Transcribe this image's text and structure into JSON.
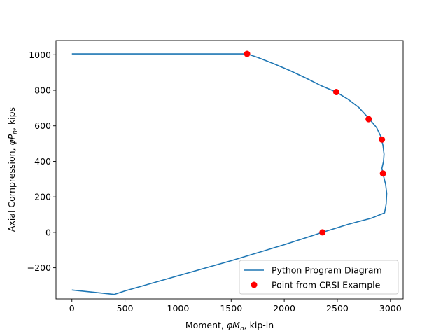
{
  "chart_data": {
    "type": "line",
    "title": "",
    "xlabel": {
      "prefix": "Moment, ",
      "symbol": "φM",
      "sub": "n",
      "suffix": ", kip-in"
    },
    "ylabel": {
      "prefix": "Axial Compression, ",
      "symbol": "φP",
      "sub": "n",
      "suffix": ", kips"
    },
    "xlim": [
      -150,
      3120
    ],
    "ylim": [
      -375,
      1080
    ],
    "xticks": [
      0,
      500,
      1000,
      1500,
      2000,
      2500,
      3000
    ],
    "yticks": [
      -200,
      0,
      200,
      400,
      600,
      800,
      1000
    ],
    "xtick_labels": [
      "0",
      "500",
      "1000",
      "1500",
      "2000",
      "2500",
      "3000"
    ],
    "ytick_labels": [
      "−200",
      "0",
      "200",
      "400",
      "600",
      "800",
      "1000"
    ],
    "grid": false,
    "legend": {
      "position": "lower-right",
      "entries": [
        "Python Program Diagram",
        "Point from CRSI Example"
      ]
    },
    "series": [
      {
        "name": "Python Program Diagram",
        "kind": "line",
        "color": "#1f77b4",
        "x": [
          0,
          1650,
          1750,
          1900,
          2050,
          2200,
          2350,
          2490,
          2600,
          2700,
          2800,
          2870,
          2910,
          2930,
          2940,
          2935,
          2920,
          2930,
          2955,
          2965,
          2960,
          2945,
          2820,
          2600,
          2360,
          2000,
          1500,
          1000,
          500,
          400,
          0
        ],
        "y": [
          1005,
          1005,
          985,
          950,
          912,
          870,
          825,
          790,
          750,
          705,
          640,
          590,
          540,
          490,
          440,
          400,
          360,
          330,
          270,
          220,
          160,
          110,
          80,
          45,
          0,
          -70,
          -160,
          -245,
          -330,
          -350,
          -325
        ]
      },
      {
        "name": "Point from CRSI Example",
        "kind": "scatter",
        "color": "#ff0000",
        "x": [
          1650,
          2490,
          2795,
          2920,
          2930,
          2360
        ],
        "y": [
          1005,
          790,
          638,
          523,
          332,
          0
        ]
      }
    ]
  }
}
